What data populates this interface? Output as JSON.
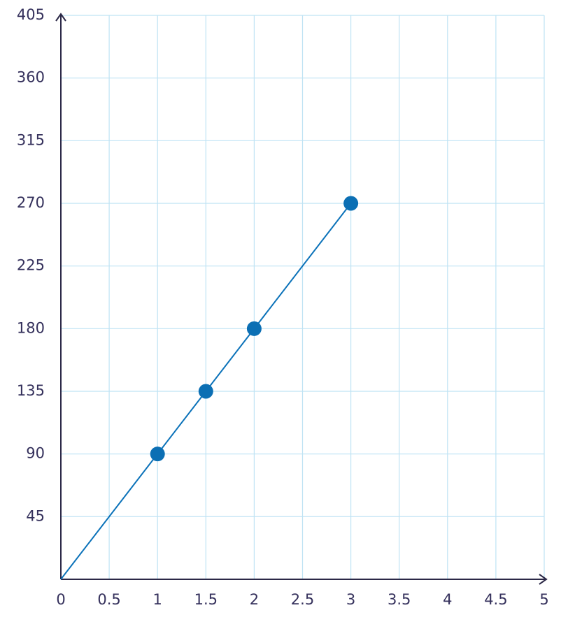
{
  "chart_data": {
    "type": "line",
    "xlim": [
      0,
      5
    ],
    "xticks": [
      0,
      0.5,
      1,
      1.5,
      2,
      2.5,
      3,
      3.5,
      4,
      4.5,
      5
    ],
    "ylim": [
      0,
      405
    ],
    "yticks": [
      45,
      90,
      135,
      180,
      225,
      270,
      315,
      360,
      405
    ],
    "grid": true,
    "series": [
      {
        "type": "line",
        "color": "#0b72b9",
        "x": [
          0,
          1,
          1.5,
          2,
          3
        ],
        "values": [
          0,
          90,
          135,
          180,
          270
        ]
      },
      {
        "type": "scatter",
        "color": "#0b6fb4",
        "x": [
          1,
          1.5,
          2,
          3
        ],
        "values": [
          90,
          135,
          180,
          270
        ]
      }
    ]
  }
}
